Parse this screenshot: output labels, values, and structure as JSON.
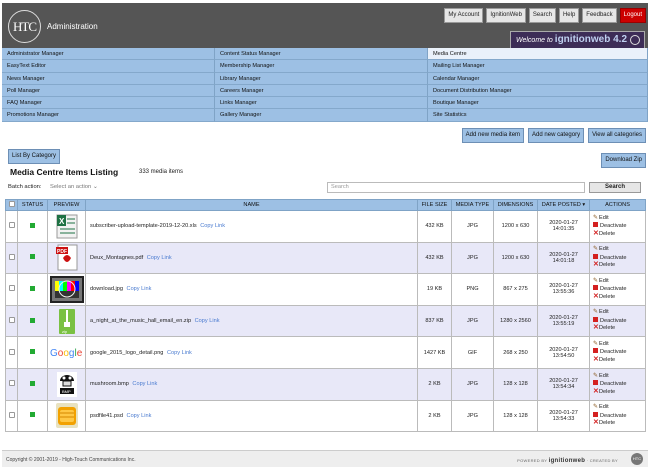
{
  "header": {
    "logo": "HTC",
    "title": "Administration",
    "nav": [
      "My Account",
      "IgnitionWeb",
      "Search",
      "Help",
      "Feedback",
      "Logout"
    ],
    "welcome_text": "Welcome to",
    "welcome_brand": "ignitionweb 4.2"
  },
  "menu": {
    "col1": [
      "Administrator Manager",
      "EasyText Editor",
      "News Manager",
      "Poll Manager",
      "FAQ Manager",
      "Promotions Manager"
    ],
    "col2": [
      "Content Status Manager",
      "Membership Manager",
      "Library Manager",
      "Careers Manager",
      "Links Manager",
      "Gallery Manager"
    ],
    "col3": [
      "Media Centre",
      "Mailing List Manager",
      "Calendar Manager",
      "Document Distribution Manager",
      "Boutique Manager",
      "Site Statistics"
    ]
  },
  "actions": {
    "add_media": "Add new media item",
    "add_category": "Add new category",
    "view_all": "View all categories",
    "list_by_category": "List By Category",
    "download_zip": "Download Zip"
  },
  "page": {
    "title": "Media Centre Items Listing",
    "count": "333 media items",
    "batch_label": "Batch action:",
    "batch_select": "Select an action",
    "search_placeholder": "Search",
    "search_button": "Search"
  },
  "table": {
    "headers": [
      "STATUS",
      "PREVIEW",
      "NAME",
      "FILE SIZE",
      "MEDIA TYPE",
      "DIMENSIONS",
      "DATE POSTED",
      "ACTIONS"
    ],
    "copy_link": "Copy Link",
    "actions": [
      "Edit",
      "Deactivate",
      "Delete"
    ],
    "rows": [
      {
        "name": "subscriber-upload-template-2019-12-20.xls",
        "size": "432 KB",
        "type": "JPG",
        "dims": "1200 x 630",
        "date": "2020-01-27",
        "time": "14:01:35",
        "preview": "excel-icon"
      },
      {
        "name": "Deux_Montagnes.pdf",
        "size": "432 KB",
        "type": "JPG",
        "dims": "1200 x 630",
        "date": "2020-01-27",
        "time": "14:01:18",
        "preview": "pdf-icon"
      },
      {
        "name": "download.jpg",
        "size": "19 KB",
        "type": "PNG",
        "dims": "867 x 275",
        "date": "2020-01-27",
        "time": "13:55:36",
        "preview": "test-pattern-image"
      },
      {
        "name": "a_night_at_the_music_hall_email_en.zip",
        "size": "837 KB",
        "type": "JPG",
        "dims": "1280 x 2560",
        "date": "2020-01-27",
        "time": "13:55:19",
        "preview": "zip-icon"
      },
      {
        "name": "google_2015_logo_detail.png",
        "size": "1427 KB",
        "type": "GIF",
        "dims": "268 x 250",
        "date": "2020-01-27",
        "time": "13:54:50",
        "preview": "google-logo"
      },
      {
        "name": "mushroom.bmp",
        "size": "2 KB",
        "type": "JPG",
        "dims": "128 x 128",
        "date": "2020-01-27",
        "time": "13:54:34",
        "preview": "bmp-icon"
      },
      {
        "name": "psdfile41.psd",
        "size": "2 KB",
        "type": "JPG",
        "dims": "128 x 128",
        "date": "2020-01-27",
        "time": "13:54:33",
        "preview": "psd-icon"
      }
    ]
  },
  "footer": {
    "copyright": "Copyright © 2001-2019 - High-Touch Communications Inc.",
    "powered_label": "POWERED BY",
    "powered_brand": "ignitionweb",
    "created_label": "CREATED BY",
    "created_brand": "HTC"
  },
  "colors": {
    "menu_blue": "#9dc0e4",
    "header_gray": "#555555",
    "logout_red": "#cc0000",
    "status_green": "#22aa33",
    "row_alt": "#e8e8f8"
  }
}
